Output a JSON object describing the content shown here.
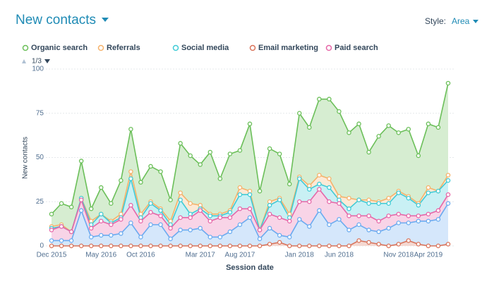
{
  "chart_data": {
    "type": "stacked_area",
    "title": "New contacts",
    "style_label": "Style:",
    "style_value": "Area",
    "pagination": "1/3",
    "x_label": "Session date",
    "y_label": "New contacts",
    "categories": [
      "Dec 2015",
      null,
      null,
      null,
      null,
      "May 2016",
      null,
      null,
      null,
      "Oct 2016",
      null,
      null,
      null,
      null,
      null,
      "Mar 2017",
      null,
      null,
      null,
      "Aug 2017",
      null,
      null,
      null,
      null,
      null,
      "Jan 2018",
      null,
      null,
      null,
      "Jun 2018",
      null,
      null,
      null,
      null,
      null,
      "Nov 2018",
      null,
      null,
      "Apr 2019",
      null,
      null
    ],
    "ylim": [
      0,
      100
    ],
    "yticks": [
      0,
      25,
      50,
      75,
      100
    ],
    "grid": true,
    "series": [
      {
        "name": "Organic search",
        "color": "#6bbf59",
        "values": [
          7,
          12,
          14,
          21,
          7,
          15,
          10,
          19,
          24,
          18,
          20,
          21,
          12,
          28,
          27,
          23,
          35,
          20,
          32,
          21,
          38,
          22,
          30,
          25,
          17,
          36,
          33,
          43,
          45,
          48,
          37,
          43,
          27,
          37,
          41,
          33,
          38,
          27,
          36,
          36,
          52
        ]
      },
      {
        "name": "Referrals",
        "color": "#f5b26b",
        "values": [
          1,
          1,
          0,
          0,
          2,
          0,
          1,
          2,
          4,
          2,
          1,
          1,
          2,
          4,
          6,
          2,
          1,
          1,
          1,
          4,
          2,
          0,
          2,
          1,
          2,
          1,
          2,
          5,
          5,
          2,
          6,
          0,
          2,
          1,
          3,
          1,
          1,
          1,
          3,
          0,
          3
        ]
      },
      {
        "name": "Social media",
        "color": "#3fcbd6",
        "values": [
          1,
          0,
          0,
          1,
          2,
          4,
          1,
          1,
          15,
          2,
          5,
          3,
          2,
          10,
          2,
          1,
          3,
          1,
          3,
          8,
          8,
          0,
          5,
          10,
          2,
          13,
          7,
          3,
          8,
          2,
          4,
          9,
          7,
          10,
          7,
          12,
          10,
          6,
          12,
          11,
          8
        ]
      },
      {
        "name": "Email marketing",
        "color": "#d9735a",
        "values": [
          0,
          0,
          0,
          0,
          0,
          0,
          0,
          0,
          0,
          0,
          0,
          0,
          0,
          0,
          0,
          0,
          0,
          0,
          0,
          0,
          0,
          0,
          1,
          2,
          0,
          0,
          0,
          0,
          0,
          0,
          0,
          3,
          2,
          1,
          0,
          1,
          3,
          1,
          0,
          0,
          1
        ]
      },
      {
        "name": "Paid search",
        "color": "#e667a8",
        "values": [
          6,
          8,
          5,
          6,
          5,
          8,
          6,
          8,
          10,
          9,
          7,
          5,
          6,
          7,
          7,
          10,
          9,
          11,
          8,
          9,
          5,
          5,
          8,
          10,
          9,
          10,
          14,
          12,
          13,
          9,
          8,
          5,
          8,
          6,
          7,
          5,
          4,
          3,
          4,
          5,
          5
        ]
      },
      {
        "color": "#6aabf0",
        "values": [
          3,
          3,
          3,
          20,
          5,
          6,
          6,
          7,
          13,
          5,
          12,
          12,
          4,
          9,
          9,
          10,
          5,
          5,
          8,
          12,
          16,
          4,
          9,
          4,
          5,
          15,
          11,
          20,
          12,
          15,
          9,
          9,
          7,
          7,
          10,
          12,
          10,
          13,
          14,
          15,
          23
        ]
      }
    ]
  }
}
